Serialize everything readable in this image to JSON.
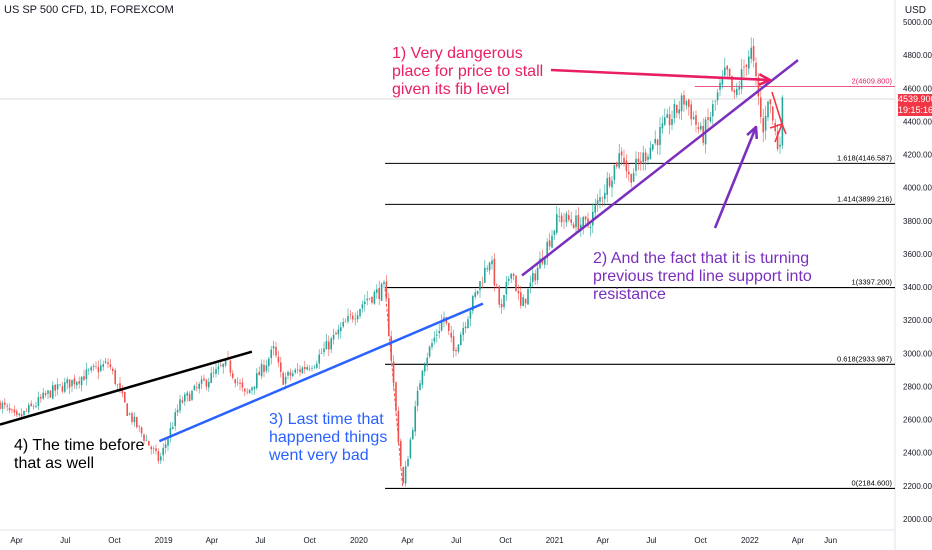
{
  "header": {
    "symbol": "US SP 500 CFD, 1D, FOREXCOM",
    "currency": "USD"
  },
  "last_price": {
    "value": "4539.900",
    "countdown": "19:15:16",
    "color": "#f23645"
  },
  "chart_data": {
    "type": "candlestick",
    "title": "US SP 500 CFD, 1D, FOREXCOM",
    "x_ticks": [
      "Apr",
      "Jul",
      "Oct",
      "2019",
      "Apr",
      "Jul",
      "Oct",
      "2020",
      "Apr",
      "Jul",
      "Oct",
      "2021",
      "Apr",
      "Jul",
      "Oct",
      "2022",
      "Apr",
      "Jun"
    ],
    "y_ticks": [
      2000,
      2200,
      2400,
      2600,
      2800,
      3000,
      3200,
      3400,
      3600,
      3800,
      4000,
      4200,
      4400,
      4600,
      4800,
      5000
    ],
    "y_tick_labels": [
      "2000.000",
      "2200.000",
      "2400.000",
      "2600.000",
      "2800.000",
      "3000.000",
      "3200.000",
      "3400.000",
      "3600.000",
      "3800.000",
      "4000.000",
      "4200.000",
      "4400.000",
      "4600.000",
      "4800.000",
      "5000.000"
    ],
    "ylim": [
      1960,
      5080
    ],
    "price_path": [
      {
        "date": "2018-03-01",
        "close": 2700
      },
      {
        "date": "2018-04-01",
        "close": 2600
      },
      {
        "date": "2018-06-01",
        "close": 2760
      },
      {
        "date": "2018-09-20",
        "close": 2940
      },
      {
        "date": "2018-10-25",
        "close": 2650
      },
      {
        "date": "2018-12-24",
        "close": 2350
      },
      {
        "date": "2019-02-01",
        "close": 2700
      },
      {
        "date": "2019-04-30",
        "close": 2940
      },
      {
        "date": "2019-06-03",
        "close": 2740
      },
      {
        "date": "2019-07-26",
        "close": 3020
      },
      {
        "date": "2019-08-10",
        "close": 2840
      },
      {
        "date": "2019-10-10",
        "close": 2950
      },
      {
        "date": "2020-01-15",
        "close": 3330
      },
      {
        "date": "2020-02-19",
        "close": 3390
      },
      {
        "date": "2020-03-23",
        "close": 2190
      },
      {
        "date": "2020-04-29",
        "close": 2930
      },
      {
        "date": "2020-06-08",
        "close": 3220
      },
      {
        "date": "2020-06-26",
        "close": 3010
      },
      {
        "date": "2020-09-02",
        "close": 3580
      },
      {
        "date": "2020-09-23",
        "close": 3240
      },
      {
        "date": "2020-10-12",
        "close": 3530
      },
      {
        "date": "2020-10-30",
        "close": 3270
      },
      {
        "date": "2021-01-08",
        "close": 3820
      },
      {
        "date": "2021-03-04",
        "close": 3770
      },
      {
        "date": "2021-05-07",
        "close": 4230
      },
      {
        "date": "2021-05-19",
        "close": 4060
      },
      {
        "date": "2021-09-02",
        "close": 4540
      },
      {
        "date": "2021-10-04",
        "close": 4300
      },
      {
        "date": "2021-11-18",
        "close": 4700
      },
      {
        "date": "2021-12-03",
        "close": 4530
      },
      {
        "date": "2021-12-28",
        "close": 4800
      },
      {
        "date": "2022-01-04",
        "close": 4820
      },
      {
        "date": "2022-01-27",
        "close": 4300
      },
      {
        "date": "2022-02-02",
        "close": 4590
      },
      {
        "date": "2022-02-24",
        "close": 4220
      },
      {
        "date": "2022-03-04",
        "close": 4540
      }
    ],
    "fib_levels": [
      {
        "label": "2(4609.800)",
        "value": 4609.8,
        "color": "#e91e63"
      },
      {
        "label": "1.618(4146.587)",
        "value": 4146.587,
        "color": "#000000"
      },
      {
        "label": "1.414(3899.216)",
        "value": 3899.216,
        "color": "#000000"
      },
      {
        "label": "1(3397.200)",
        "value": 3397.2,
        "color": "#000000"
      },
      {
        "label": "0.618(2933.987)",
        "value": 2933.987,
        "color": "#000000"
      },
      {
        "label": "0(2184.600)",
        "value": 2184.6,
        "color": "#000000"
      }
    ],
    "trend_lines": [
      {
        "name": "black",
        "color": "#000000",
        "from": {
          "date": "2018-03-01",
          "value": 2570
        },
        "to": {
          "date": "2019-06-15",
          "value": 3010
        }
      },
      {
        "name": "blue",
        "color": "#2962ff",
        "from": {
          "date": "2018-12-24",
          "value": 2470
        },
        "to": {
          "date": "2020-08-20",
          "value": 3300
        }
      },
      {
        "name": "purple",
        "color": "#7b2fbe",
        "from": {
          "date": "2020-11-01",
          "value": 3470
        },
        "to": {
          "date": "2022-04-01",
          "value": 4770
        }
      }
    ],
    "annotations": [
      {
        "text": "1) Very dangerous\nplace for price to stall\ngiven its fib level",
        "color": "#e91e63"
      },
      {
        "text": "2) And the fact that it is turning\nprevious trend line support into\nresistance",
        "color": "#7b2fbe"
      },
      {
        "text": "3) Last time that\nhappened things\nwent very bad",
        "color": "#2962ff"
      },
      {
        "text": "4) The time before\nthat as well",
        "color": "#000000"
      }
    ],
    "colors": {
      "up": "#26a69a",
      "down": "#ef5350"
    }
  }
}
